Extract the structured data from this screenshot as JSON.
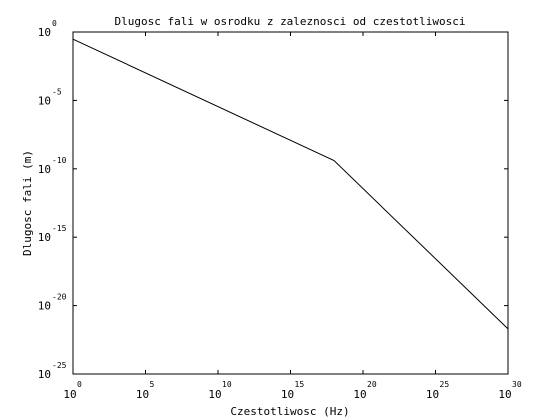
{
  "chart_data": {
    "type": "line",
    "title": "Dlugosc fali w osrodku z zaleznosci od czestotliwosci",
    "xlabel": "Czestotliwosc (Hz)",
    "ylabel": "Dlugosc fali (m)",
    "x_scale": "log",
    "y_scale": "log",
    "xlim": [
      1,
      1e+30
    ],
    "ylim": [
      1e-25,
      1
    ],
    "grid": false,
    "x_ticks": [
      {
        "base": "10",
        "exp": "0"
      },
      {
        "base": "10",
        "exp": "5"
      },
      {
        "base": "10",
        "exp": "10"
      },
      {
        "base": "10",
        "exp": "15"
      },
      {
        "base": "10",
        "exp": "20"
      },
      {
        "base": "10",
        "exp": "25"
      },
      {
        "base": "10",
        "exp": "30"
      }
    ],
    "y_ticks": [
      {
        "base": "10",
        "exp": "0"
      },
      {
        "base": "10",
        "exp": "-5"
      },
      {
        "base": "10",
        "exp": "-10"
      },
      {
        "base": "10",
        "exp": "-15"
      },
      {
        "base": "10",
        "exp": "-20"
      },
      {
        "base": "10",
        "exp": "-25"
      }
    ],
    "series": [
      {
        "x": [
          1,
          1e+18,
          1e+30
        ],
        "y": [
          0.3,
          4e-10,
          2e-22
        ]
      }
    ]
  }
}
